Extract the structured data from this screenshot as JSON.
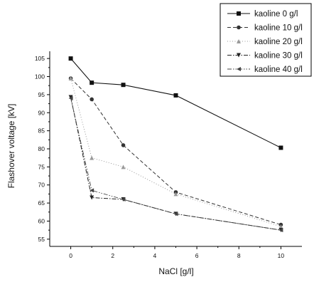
{
  "chart_data": {
    "type": "line",
    "xlabel": "NaCl [g/l]",
    "ylabel": "Flashover voltage [kV]",
    "xlim": [
      -1,
      11
    ],
    "ylim": [
      53,
      107
    ],
    "xticks": [
      0,
      2,
      4,
      6,
      8,
      10
    ],
    "yticks": [
      55,
      60,
      65,
      70,
      75,
      80,
      85,
      90,
      95,
      100,
      105
    ],
    "legend_position": "top-right",
    "grid": false,
    "series": [
      {
        "name": "kaoline  0 g/l",
        "x": [
          0,
          1,
          2.5,
          5,
          10
        ],
        "y": [
          105,
          98.3,
          97.7,
          94.8,
          80.3
        ],
        "line_style": "solid",
        "marker": "square"
      },
      {
        "name": "kaoline 10 g/l",
        "x": [
          0,
          1,
          2.5,
          5,
          10
        ],
        "y": [
          99.5,
          93.7,
          81,
          68,
          59
        ],
        "line_style": "dashed",
        "marker": "circle"
      },
      {
        "name": "kaoline 20 g/l",
        "x": [
          0,
          1,
          2.5,
          5,
          10
        ],
        "y": [
          99.5,
          77.5,
          75,
          67.5,
          58.5
        ],
        "line_style": "dotted",
        "marker": "triangle-up"
      },
      {
        "name": "kaoline 30 g/l",
        "x": [
          0,
          1,
          2.5,
          5,
          10
        ],
        "y": [
          94.3,
          66.5,
          66,
          62,
          57.5
        ],
        "line_style": "dash-dot",
        "marker": "triangle-down"
      },
      {
        "name": "kaoline 40 g/l",
        "x": [
          0,
          1,
          2.5,
          5,
          10
        ],
        "y": [
          94,
          68.5,
          66,
          62,
          57.5
        ],
        "line_style": "dash-dot-dot",
        "marker": "triangle-left"
      }
    ]
  }
}
